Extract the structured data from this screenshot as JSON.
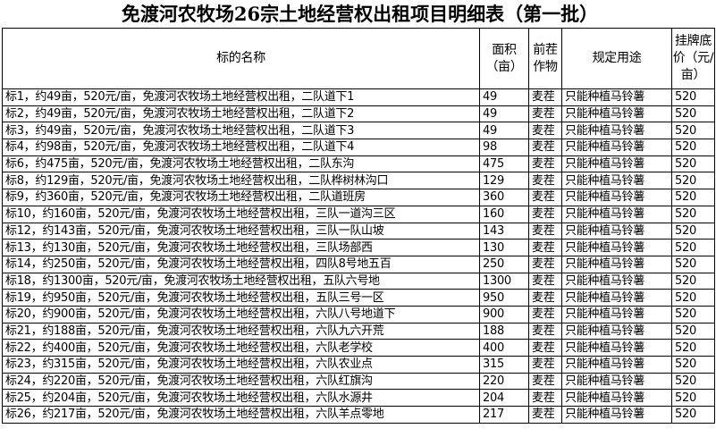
{
  "title": "免渡河农牧场26宗土地经营权出租项目明细表（第一批）",
  "headers": {
    "name": "标的名称",
    "area": "面积（亩）",
    "crop": "前茬作物",
    "use": "规定用途",
    "price": "挂牌底价（元/亩）"
  },
  "rows": [
    {
      "name": "标1，约49亩，520元/亩，免渡河农牧场土地经营权出租，二队道下1",
      "area": "49",
      "crop": "麦茬",
      "use": "只能种植马铃薯",
      "price": "520"
    },
    {
      "name": "标2，约49亩，520元/亩，免渡河农牧场土地经营权出租，二队道下2",
      "area": "49",
      "crop": "麦茬",
      "use": "只能种植马铃薯",
      "price": "520"
    },
    {
      "name": "标3，约49亩，520元/亩，免渡河农牧场土地经营权出租，二队道下3",
      "area": "49",
      "crop": "麦茬",
      "use": "只能种植马铃薯",
      "price": "520"
    },
    {
      "name": "标4，约98亩，520元/亩，免渡河农牧场土地经营权出租，二队道下4",
      "area": "98",
      "crop": "麦茬",
      "use": "只能种植马铃薯",
      "price": "520"
    },
    {
      "name": "标6，约475亩，520元/亩，免渡河农牧场土地经营权出租，二队东沟",
      "area": "475",
      "crop": "麦茬",
      "use": "只能种植马铃薯",
      "price": "520"
    },
    {
      "name": "标8，约129亩，520元/亩，免渡河农牧场土地经营权出租，二队桦树林沟口",
      "area": "129",
      "crop": "麦茬",
      "use": "只能种植马铃薯",
      "price": "520"
    },
    {
      "name": "标9，约360亩，520元/亩，免渡河农牧场土地经营权出租，二队道班房",
      "area": "360",
      "crop": "麦茬",
      "use": "只能种植马铃薯",
      "price": "520"
    },
    {
      "name": "标10，约160亩，520元/亩，免渡河农牧场土地经营权出租，三队一道沟三区",
      "area": "160",
      "crop": "麦茬",
      "use": "只能种植马铃薯",
      "price": "520"
    },
    {
      "name": "标12，约143亩，520元/亩，免渡河农牧场土地经营权出租，三队一队山坡",
      "area": "143",
      "crop": "麦茬",
      "use": "只能种植马铃薯",
      "price": "520"
    },
    {
      "name": "标13，约130亩，520元/亩，免渡河农牧场土地经营权出租，三队场部西",
      "area": "130",
      "crop": "麦茬",
      "use": "只能种植马铃薯",
      "price": "520"
    },
    {
      "name": "标14，约250亩，520元/亩，免渡河农牧场土地经营权出租，四队8号地五百",
      "area": "250",
      "crop": "麦茬",
      "use": "只能种植马铃薯",
      "price": "520"
    },
    {
      "name": "标18，约1300亩，520元/亩，免渡河农牧场土地经营权出租，五队六号地",
      "area": "1300",
      "crop": "麦茬",
      "use": "只能种植马铃薯",
      "price": "520"
    },
    {
      "name": "标19，约950亩，520元/亩，免渡河农牧场土地经营权出租，五队三号一区",
      "area": "950",
      "crop": "麦茬",
      "use": "只能种植马铃薯",
      "price": "520"
    },
    {
      "name": "标20，约900亩，520元/亩，免渡河农牧场土地经营权出租，六队八号地道下",
      "area": "900",
      "crop": "麦茬",
      "use": "只能种植马铃薯",
      "price": "520"
    },
    {
      "name": "标21，约188亩，520元/亩，免渡河农牧场土地经营权出租，六队九六开荒",
      "area": "188",
      "crop": "麦茬",
      "use": "只能种植马铃薯",
      "price": "520"
    },
    {
      "name": "标22，约400亩，520元/亩，免渡河农牧场土地经营权出租，六队老学校",
      "area": "400",
      "crop": "麦茬",
      "use": "只能种植马铃薯",
      "price": "520"
    },
    {
      "name": "标23，约315亩，520元/亩，免渡河农牧场土地经营权出租，六队农业点",
      "area": "315",
      "crop": "麦茬",
      "use": "只能种植马铃薯",
      "price": "520"
    },
    {
      "name": "标24，约220亩，520元/亩，免渡河农牧场土地经营权出租，六队红旗沟",
      "area": "220",
      "crop": "麦茬",
      "use": "只能种植马铃薯",
      "price": "520"
    },
    {
      "name": "标25，约204亩，520元/亩，免渡河农牧场土地经营权出租，六队水源井",
      "area": "204",
      "crop": "麦茬",
      "use": "只能种植马铃薯",
      "price": "520"
    },
    {
      "name": "标26，约217亩，520元/亩，免渡河农牧场土地经营权出租，六队羊点零地",
      "area": "217",
      "crop": "麦茬",
      "use": "只能种植马铃薯",
      "price": "520"
    }
  ]
}
